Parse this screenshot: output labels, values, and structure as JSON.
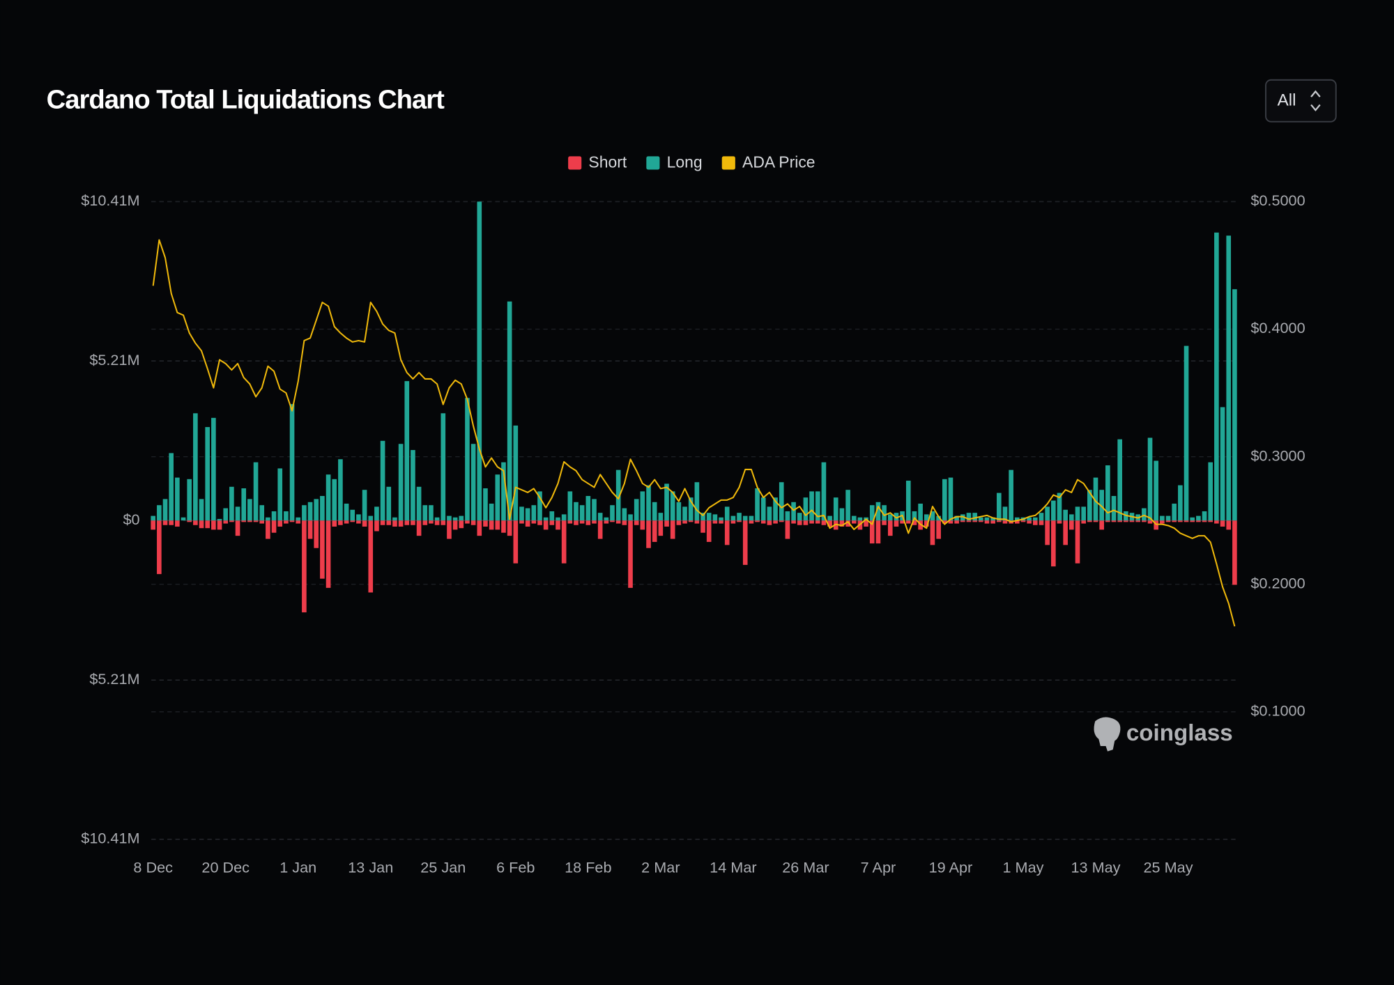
{
  "chart_data": {
    "type": "bar",
    "title": "Cardano Total Liquidations Chart",
    "legend": "top",
    "grid": true,
    "categories": [
      "8 Dec",
      null,
      null,
      null,
      null,
      null,
      null,
      null,
      null,
      null,
      null,
      null,
      "20 Dec",
      null,
      null,
      null,
      null,
      null,
      null,
      null,
      null,
      null,
      null,
      null,
      "1 Jan",
      null,
      null,
      null,
      null,
      null,
      null,
      null,
      null,
      null,
      null,
      null,
      "13 Jan",
      null,
      null,
      null,
      null,
      null,
      null,
      null,
      null,
      null,
      null,
      null,
      "25 Jan",
      null,
      null,
      null,
      null,
      null,
      null,
      null,
      null,
      null,
      null,
      null,
      "6 Feb",
      null,
      null,
      null,
      null,
      null,
      null,
      null,
      null,
      null,
      null,
      null,
      "18 Feb",
      null,
      null,
      null,
      null,
      null,
      null,
      null,
      null,
      null,
      null,
      null,
      "2 Mar",
      null,
      null,
      null,
      null,
      null,
      null,
      null,
      null,
      null,
      null,
      null,
      "14 Mar",
      null,
      null,
      null,
      null,
      null,
      null,
      null,
      null,
      null,
      null,
      null,
      "26 Mar",
      null,
      null,
      null,
      null,
      null,
      null,
      null,
      null,
      null,
      null,
      null,
      "7 Apr",
      null,
      null,
      null,
      null,
      null,
      null,
      null,
      null,
      null,
      null,
      null,
      "19 Apr",
      null,
      null,
      null,
      null,
      null,
      null,
      null,
      null,
      null,
      null,
      null,
      "1 May",
      null,
      null,
      null,
      null,
      null,
      null,
      null,
      null,
      null,
      null,
      null,
      "13 May",
      null,
      null,
      null,
      null,
      null,
      null,
      null,
      null,
      null,
      null,
      null,
      "25 May",
      null,
      null,
      null,
      null,
      null,
      null,
      null,
      null,
      null,
      null,
      null
    ],
    "series": [
      {
        "name": "Short",
        "type": "bar",
        "color": "#ee3d4b",
        "values": [
          -0.3,
          -1.75,
          -0.15,
          -0.15,
          -0.2,
          0,
          -0.05,
          -0.15,
          -0.25,
          -0.25,
          -0.3,
          -0.3,
          -0.1,
          -0.05,
          -0.5,
          -0.05,
          -0.05,
          -0.05,
          -0.1,
          -0.6,
          -0.4,
          -0.2,
          -0.1,
          -0.05,
          -0.1,
          -3.0,
          -0.6,
          -0.9,
          -1.9,
          -2.2,
          -0.2,
          -0.15,
          -0.1,
          -0.05,
          -0.1,
          -0.2,
          -2.35,
          -0.35,
          -0.15,
          -0.15,
          -0.2,
          -0.2,
          -0.15,
          -0.15,
          -0.5,
          -0.15,
          -0.1,
          -0.15,
          -0.15,
          -0.6,
          -0.3,
          -0.25,
          -0.1,
          -0.15,
          -0.5,
          -0.2,
          -0.3,
          -0.3,
          -0.4,
          -0.5,
          -1.4,
          -0.1,
          -0.2,
          -0.1,
          -0.15,
          -0.3,
          -0.15,
          -0.3,
          -1.4,
          -0.1,
          -0.15,
          -0.1,
          -0.15,
          -0.1,
          -0.6,
          -0.1,
          -0.05,
          -0.1,
          -0.15,
          -2.2,
          -0.15,
          -0.3,
          -0.9,
          -0.7,
          -0.5,
          -0.2,
          -0.6,
          -0.15,
          -0.1,
          -0.05,
          -0.1,
          -0.4,
          -0.7,
          -0.1,
          -0.1,
          -0.8,
          -0.1,
          -0.05,
          -1.45,
          -0.1,
          -0.05,
          -0.1,
          -0.15,
          -0.1,
          -0.05,
          -0.6,
          -0.1,
          -0.15,
          -0.15,
          -0.1,
          -0.1,
          -0.15,
          -0.2,
          -0.3,
          -0.2,
          -0.2,
          -0.1,
          -0.3,
          -0.2,
          -0.75,
          -0.75,
          -0.15,
          -0.5,
          -0.2,
          -0.1,
          -0.1,
          -0.15,
          -0.3,
          -0.2,
          -0.8,
          -0.6,
          -0.1,
          -0.1,
          -0.1,
          -0.05,
          -0.05,
          -0.05,
          -0.05,
          -0.1,
          -0.1,
          -0.05,
          -0.1,
          -0.1,
          -0.1,
          -0.05,
          -0.1,
          -0.15,
          -0.15,
          -0.8,
          -1.5,
          -0.1,
          -0.8,
          -0.3,
          -1.4,
          -0.1,
          -0.05,
          -0.05,
          -0.3,
          -0.05,
          -0.05,
          -0.05,
          -0.05,
          -0.05,
          -0.05,
          -0.05,
          -0.1,
          -0.3,
          -0.1,
          -0.05,
          -0.05,
          -0.05,
          -0.05,
          -0.05,
          -0.05,
          -0.05,
          -0.05,
          -0.1,
          -0.2,
          -0.3,
          -2.1
        ]
      },
      {
        "name": "Long",
        "type": "bar",
        "color": "#21a796",
        "values": [
          0.15,
          0.5,
          0.7,
          2.2,
          1.4,
          0.1,
          1.35,
          3.5,
          0.7,
          3.05,
          3.35,
          0.05,
          0.4,
          1.1,
          0.45,
          1.05,
          0.7,
          1.9,
          0.5,
          0.1,
          0.3,
          1.7,
          0.3,
          3.8,
          0.1,
          0.5,
          0.6,
          0.7,
          0.8,
          1.5,
          1.35,
          2.0,
          0.55,
          0.35,
          0.2,
          1.0,
          0.15,
          0.45,
          2.6,
          1.1,
          0.1,
          2.5,
          4.55,
          2.3,
          1.1,
          0.5,
          0.5,
          0.1,
          3.5,
          0.15,
          0.1,
          0.15,
          4.0,
          2.5,
          10.41,
          1.05,
          0.55,
          1.5,
          1.9,
          7.15,
          3.1,
          0.45,
          0.4,
          0.5,
          0.95,
          0.1,
          0.3,
          0.1,
          0.2,
          0.95,
          0.6,
          0.5,
          0.8,
          0.7,
          0.25,
          0.1,
          0.5,
          1.65,
          0.4,
          0.2,
          0.7,
          0.95,
          1.15,
          0.6,
          0.25,
          1.2,
          0.95,
          0.6,
          0.45,
          0.75,
          1.25,
          0.25,
          0.25,
          0.2,
          0.1,
          0.45,
          0.15,
          0.25,
          0.15,
          0.15,
          1.05,
          0.75,
          0.45,
          0.75,
          1.25,
          0.3,
          0.6,
          0.25,
          0.75,
          0.95,
          0.95,
          1.9,
          0.15,
          0.75,
          0.4,
          1.0,
          0.15,
          0.1,
          0.1,
          0.5,
          0.6,
          0.5,
          0.2,
          0.25,
          0.3,
          1.3,
          0.3,
          0.55,
          0.2,
          0.3,
          0.15,
          1.35,
          1.4,
          0.15,
          0.2,
          0.25,
          0.25,
          0.1,
          0.1,
          0.1,
          0.9,
          0.45,
          1.65,
          0.1,
          0.1,
          0.1,
          0.1,
          0.25,
          0.45,
          0.65,
          0.9,
          0.35,
          0.2,
          0.45,
          0.45,
          1.0,
          1.4,
          1.0,
          1.8,
          0.8,
          2.65,
          0.3,
          0.25,
          0.2,
          0.4,
          2.7,
          1.95,
          0.15,
          0.15,
          0.55,
          1.15,
          5.7,
          0.1,
          0.15,
          0.3,
          1.9,
          9.4,
          3.7,
          9.3,
          7.55
        ]
      },
      {
        "name": "ADA Price",
        "type": "line",
        "axis": "y2",
        "color": "#f0b90b",
        "values": [
          0.434,
          0.47,
          0.456,
          0.428,
          0.413,
          0.411,
          0.397,
          0.389,
          0.383,
          0.369,
          0.354,
          0.376,
          0.373,
          0.368,
          0.373,
          0.362,
          0.357,
          0.347,
          0.354,
          0.371,
          0.367,
          0.353,
          0.35,
          0.336,
          0.359,
          0.391,
          0.393,
          0.407,
          0.421,
          0.418,
          0.402,
          0.397,
          0.393,
          0.39,
          0.391,
          0.39,
          0.421,
          0.414,
          0.404,
          0.399,
          0.397,
          0.376,
          0.366,
          0.361,
          0.366,
          0.361,
          0.361,
          0.357,
          0.341,
          0.354,
          0.36,
          0.357,
          0.345,
          0.324,
          0.306,
          0.292,
          0.299,
          0.292,
          0.289,
          0.251,
          0.276,
          0.274,
          0.272,
          0.275,
          0.268,
          0.26,
          0.268,
          0.279,
          0.296,
          0.292,
          0.289,
          0.282,
          0.279,
          0.276,
          0.286,
          0.279,
          0.272,
          0.267,
          0.279,
          0.298,
          0.289,
          0.279,
          0.276,
          0.282,
          0.275,
          0.276,
          0.272,
          0.265,
          0.275,
          0.265,
          0.258,
          0.254,
          0.26,
          0.263,
          0.266,
          0.266,
          0.268,
          0.276,
          0.29,
          0.29,
          0.276,
          0.268,
          0.272,
          0.265,
          0.26,
          0.263,
          0.258,
          0.261,
          0.254,
          0.258,
          0.253,
          0.254,
          0.244,
          0.247,
          0.246,
          0.249,
          0.243,
          0.247,
          0.251,
          0.247,
          0.261,
          0.254,
          0.256,
          0.252,
          0.254,
          0.24,
          0.252,
          0.247,
          0.244,
          0.261,
          0.253,
          0.247,
          0.251,
          0.253,
          0.253,
          0.251,
          0.252,
          0.253,
          0.254,
          0.252,
          0.251,
          0.251,
          0.249,
          0.25,
          0.251,
          0.253,
          0.254,
          0.258,
          0.263,
          0.27,
          0.268,
          0.274,
          0.272,
          0.282,
          0.279,
          0.272,
          0.265,
          0.261,
          0.256,
          0.258,
          0.256,
          0.254,
          0.253,
          0.252,
          0.254,
          0.252,
          0.247,
          0.247,
          0.246,
          0.244,
          0.24,
          0.238,
          0.236,
          0.238,
          0.238,
          0.233,
          0.216,
          0.198,
          0.185,
          0.167
        ]
      }
    ],
    "ylim": [
      -10.41,
      10.41
    ],
    "yticks": [
      {
        "value": 10.41,
        "label": "$10.41M"
      },
      {
        "value": 5.21,
        "label": "$5.21M"
      },
      {
        "value": 0,
        "label": "$0"
      },
      {
        "value": -5.21,
        "label": "$5.21M"
      },
      {
        "value": -10.41,
        "label": "$10.41M"
      }
    ],
    "y2lim": [
      0,
      0.5
    ],
    "y2ticks": [
      {
        "value": 0.5,
        "label": "$0.5000"
      },
      {
        "value": 0.4,
        "label": "$0.4000"
      },
      {
        "value": 0.3,
        "label": "$0.3000"
      },
      {
        "value": 0.2,
        "label": "$0.2000"
      },
      {
        "value": 0.1,
        "label": "$0.1000"
      }
    ]
  },
  "controls": {
    "range": "All"
  },
  "watermark": "coinglass"
}
